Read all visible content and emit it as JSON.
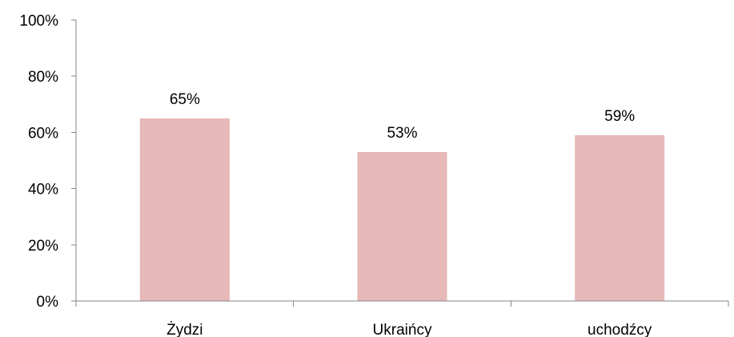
{
  "chart_data": {
    "type": "bar",
    "categories": [
      "Żydzi",
      "Ukraińcy",
      "uchodźcy"
    ],
    "values": [
      65,
      53,
      59
    ],
    "data_labels": [
      "65%",
      "53%",
      "59%"
    ],
    "ylim": [
      0,
      100
    ],
    "y_ticks": [
      0,
      20,
      40,
      60,
      80,
      100
    ],
    "y_tick_labels": [
      "0%",
      "20%",
      "40%",
      "60%",
      "80%",
      "100%"
    ],
    "title": "",
    "xlabel": "",
    "ylabel": "",
    "grid": false,
    "legend": "none",
    "bar_color": "#e6b8b7",
    "axis_color": "#868686"
  }
}
